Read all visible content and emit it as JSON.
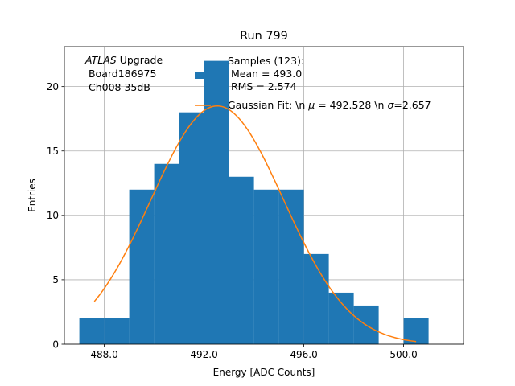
{
  "chart_data": {
    "type": "bar",
    "title": "Run 799",
    "xlabel": "Energy [ADC Counts]",
    "ylabel": "Entries",
    "xlim": [
      486.4,
      502.4
    ],
    "ylim": [
      0,
      23.1
    ],
    "grid": true,
    "x_ticks": [
      488.0,
      492.0,
      496.0,
      500.0
    ],
    "x_tick_labels": [
      "488.0",
      "492.0",
      "496.0",
      "500.0"
    ],
    "y_ticks": [
      0,
      5,
      10,
      15,
      20
    ],
    "y_tick_labels": [
      "0",
      "5",
      "10",
      "15",
      "20"
    ],
    "bin_edges": [
      487,
      488,
      489,
      490,
      491,
      492,
      493,
      494,
      495,
      496,
      497,
      498,
      499,
      500,
      501
    ],
    "counts": [
      2,
      2,
      12,
      14,
      18,
      22,
      13,
      12,
      12,
      7,
      4,
      3,
      0,
      2
    ],
    "bar_color": "#1f77b4",
    "fit": {
      "name": "Gaussian",
      "color": "#ff7f0e",
      "mu": 492.528,
      "sigma": 2.657,
      "amplitude": 18.5,
      "x_range": [
        487.6,
        500.5
      ]
    },
    "atlas_label": {
      "italic": "ATLAS",
      "suffix": " Upgrade",
      "line2": " Board186975",
      "line3": " Ch008 35dB"
    },
    "legend": {
      "placement": "top-right",
      "samples_entry": "Samples (123):",
      "mean_entry": " Mean = 493.0",
      "rms_entry": " RMS = 2.574",
      "fit_prefix": "Gaussian Fit: \\n ",
      "fit_mu_symbol": "μ",
      "fit_mu_text": " = 492.528 \\n ",
      "fit_sigma_symbol": "σ",
      "fit_sigma_text": "=2.657"
    }
  }
}
